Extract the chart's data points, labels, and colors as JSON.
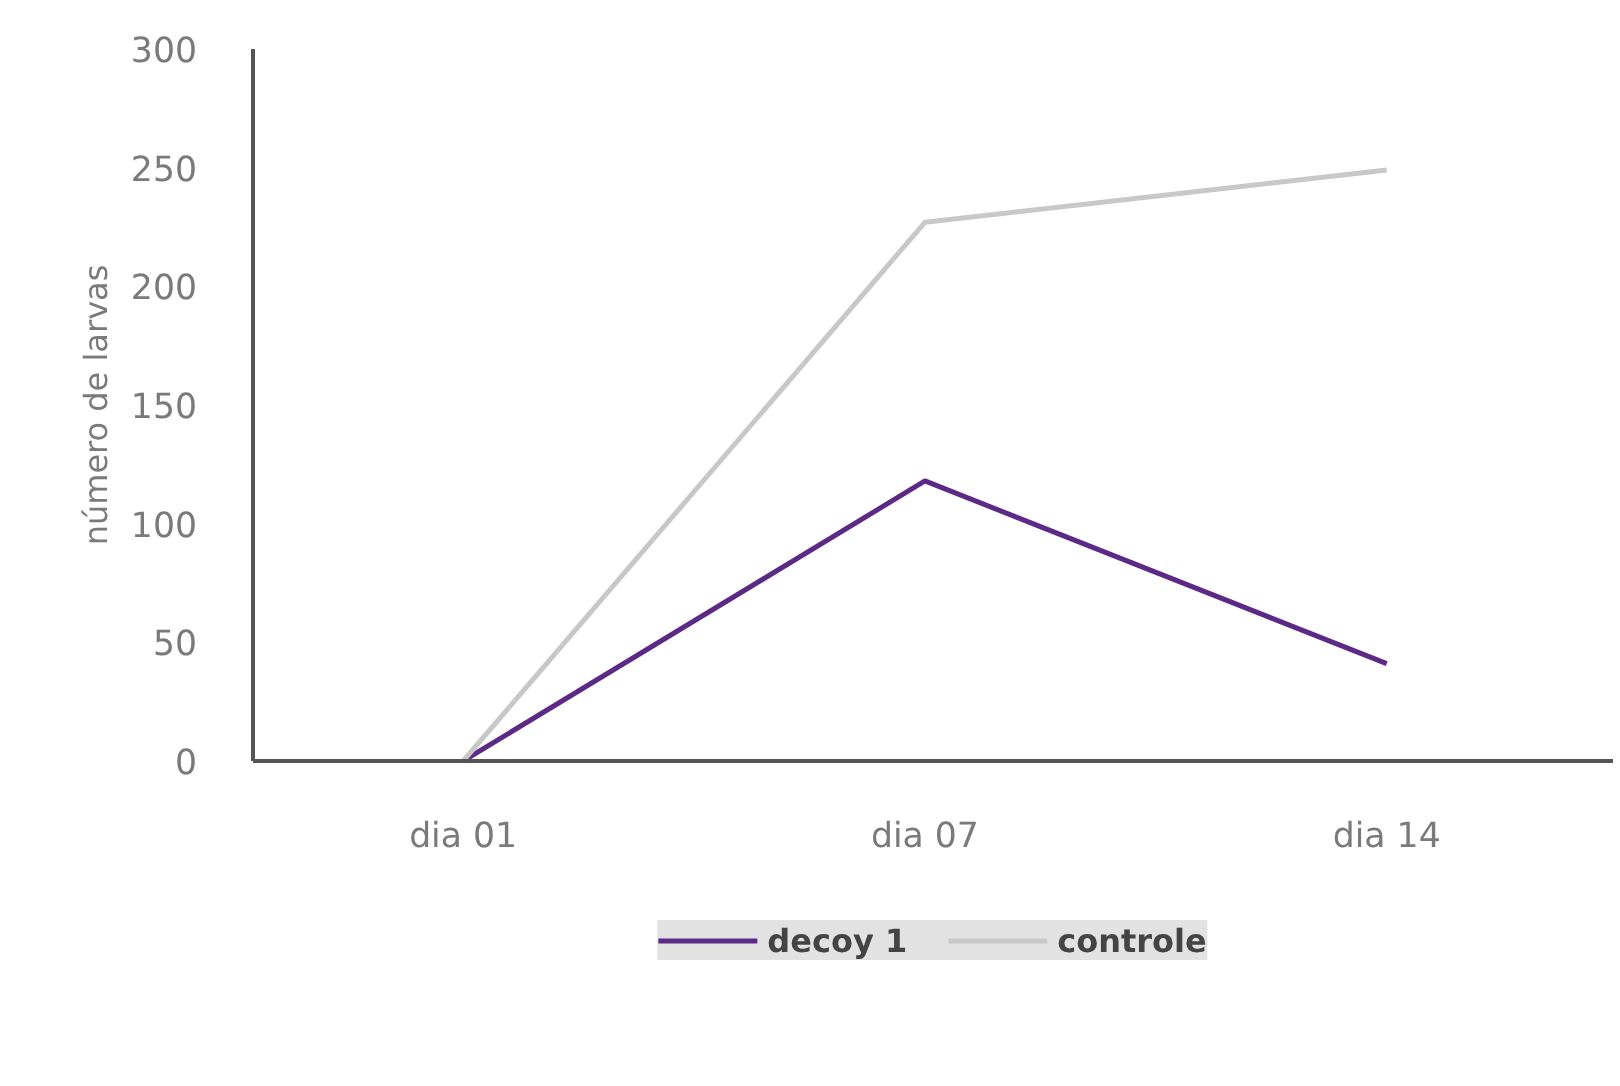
{
  "chart_data": {
    "type": "line",
    "ylabel": "número de larvas",
    "categories": [
      "dia 01",
      "dia 07",
      "dia 14"
    ],
    "series": [
      {
        "name": "decoy 1",
        "color": "#5c2a86",
        "values": [
          0,
          118,
          41
        ]
      },
      {
        "name": "controle",
        "color": "#c8c8c8",
        "values": [
          0,
          227,
          249
        ]
      }
    ],
    "ylim": [
      0,
      300
    ],
    "yticks": [
      0,
      50,
      100,
      150,
      200,
      250,
      300
    ],
    "grid": false,
    "legend": "bottom",
    "marker": "none",
    "line_style": "solid"
  }
}
